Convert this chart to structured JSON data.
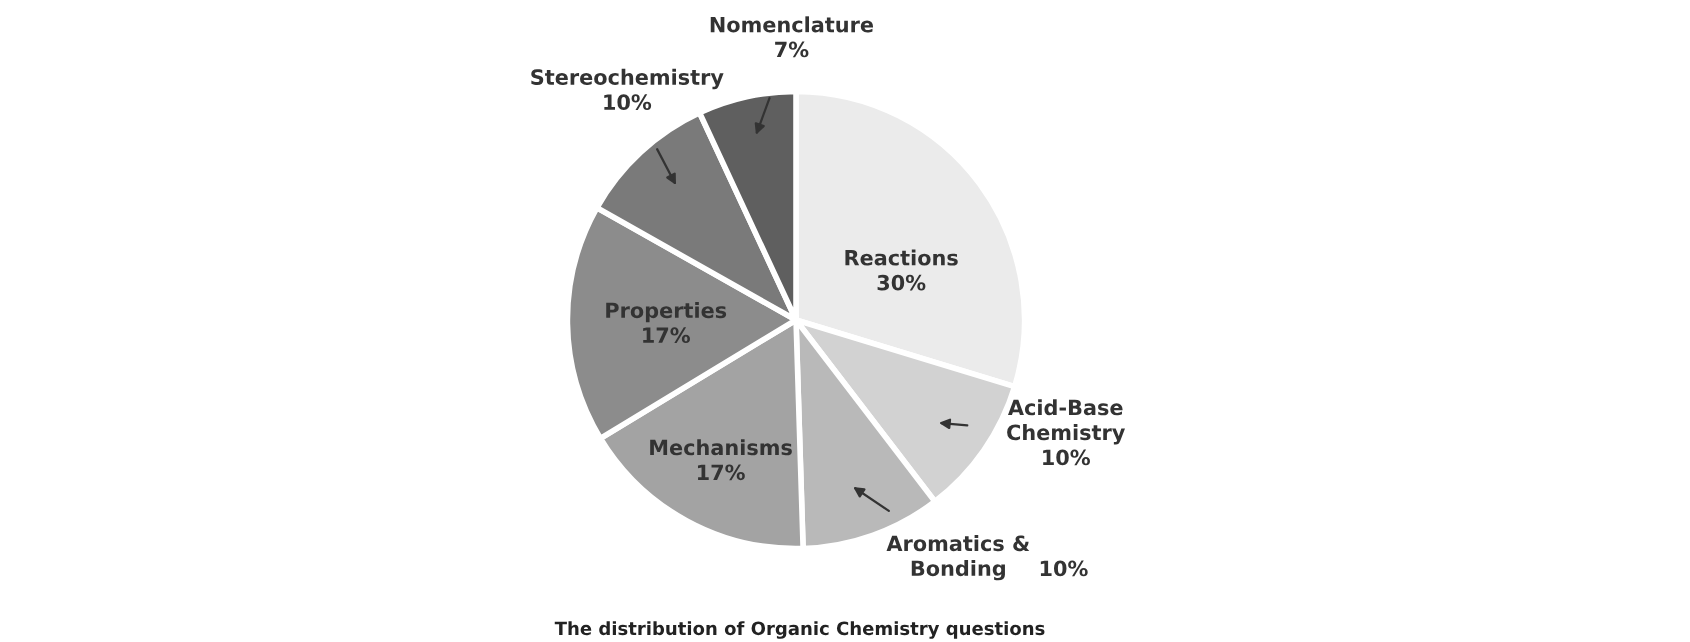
{
  "chart_data": {
    "type": "pie",
    "title": "The distribution of Organic Chemistry questions",
    "categories": [
      "Reactions",
      "Acid-Base Chemistry",
      "Aromatics & Bonding",
      "Mechanisms",
      "Properties",
      "Stereochemistry",
      "Nomenclature"
    ],
    "values": [
      30,
      10,
      10,
      17,
      17,
      10,
      7
    ],
    "value_labels": [
      "30%",
      "10%",
      "10%",
      "17%",
      "17%",
      "10%",
      "7%"
    ],
    "colors": [
      "#ebebeb",
      "#d2d2d2",
      "#b9b9b9",
      "#a3a3a3",
      "#8c8c8c",
      "#7a7a7a",
      "#5f5f5f"
    ]
  }
}
